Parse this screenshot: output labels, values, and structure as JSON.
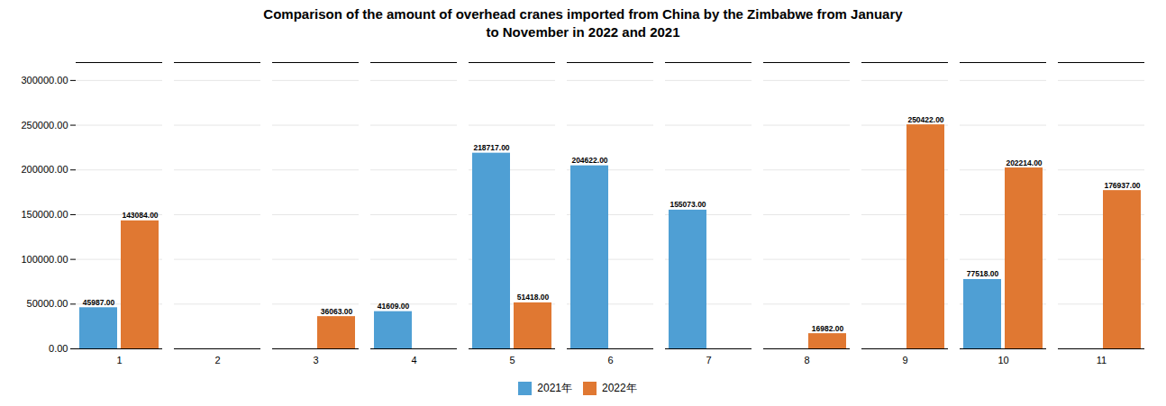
{
  "chart_data": {
    "type": "bar",
    "title": "Comparison of the amount of overhead cranes imported from China by the Zimbabwe from January\nto November in 2022 and 2021",
    "categories": [
      "1",
      "2",
      "3",
      "4",
      "5",
      "6",
      "7",
      "8",
      "9",
      "10",
      "11"
    ],
    "series": [
      {
        "name": "2021年",
        "color": "#4f9fd4",
        "values": [
          45987,
          0,
          0,
          41609,
          218717,
          204622,
          155073,
          0,
          0,
          77518,
          0
        ],
        "value_labels": [
          "45987.00",
          null,
          null,
          "41609.00",
          "218717.00",
          "204622.00",
          "155073.00",
          null,
          null,
          "77518.00",
          null
        ]
      },
      {
        "name": "2022年",
        "color": "#e07832",
        "values": [
          143084,
          0,
          36063,
          0,
          51418,
          0,
          0,
          16982,
          250422,
          202214,
          176937
        ],
        "value_labels": [
          "143084.00",
          null,
          "36063.00",
          null,
          "51418.00",
          null,
          null,
          "16982.00",
          "250422.00",
          "202214.00",
          "176937.00"
        ]
      }
    ],
    "ylim": [
      0,
      320000
    ],
    "yticks": [
      {
        "value": 0,
        "label": "0.00"
      },
      {
        "value": 50000,
        "label": "50000.00"
      },
      {
        "value": 100000,
        "label": "100000.00"
      },
      {
        "value": 150000,
        "label": "150000.00"
      },
      {
        "value": 200000,
        "label": "200000.00"
      },
      {
        "value": 250000,
        "label": "250000.00"
      },
      {
        "value": 300000,
        "label": "300000.00"
      }
    ],
    "grid": true,
    "legend": "bottom",
    "data_labels": true
  }
}
